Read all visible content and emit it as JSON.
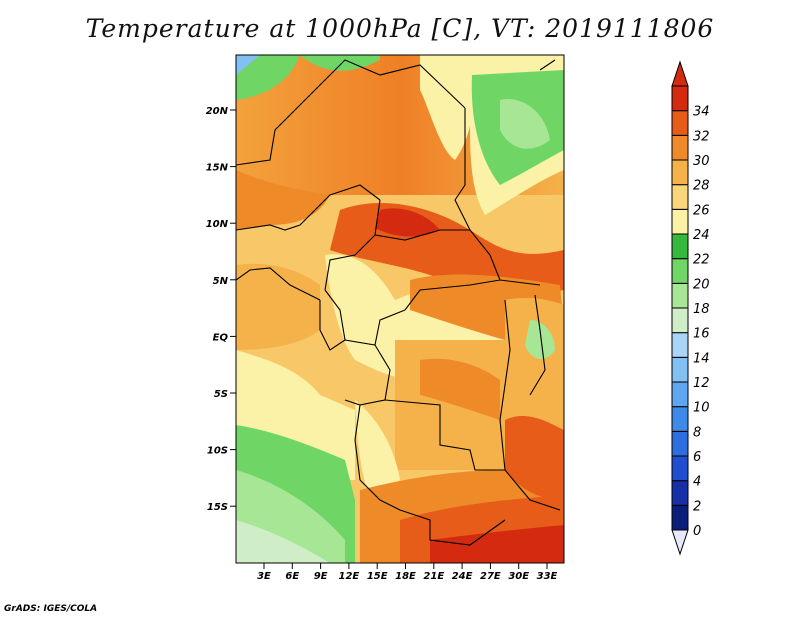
{
  "title": "Temperature at 1000hPa [C], VT: 2019111806",
  "footer": "GrADS: IGES/COLA",
  "lat_labels": [
    "20N",
    "15N",
    "10N",
    "5N",
    "EQ",
    "5S",
    "10S",
    "15S"
  ],
  "lon_labels": [
    "3E",
    "6E",
    "9E",
    "12E",
    "15E",
    "18E",
    "21E",
    "24E",
    "27E",
    "30E",
    "33E"
  ],
  "colorbar": {
    "labels": [
      "0",
      "2",
      "4",
      "6",
      "8",
      "10",
      "12",
      "14",
      "16",
      "18",
      "20",
      "22",
      "24",
      "26",
      "28",
      "30",
      "32",
      "34"
    ],
    "colors": [
      "#0b1e7a",
      "#1730a8",
      "#1f4fd0",
      "#2e6fe0",
      "#3f8ae8",
      "#5ea6ef",
      "#82c0f4",
      "#a9d6f7",
      "#cfeec8",
      "#a6e694",
      "#6fd666",
      "#36b73d",
      "#fbf2a8",
      "#f9d67a",
      "#f5b24a",
      "#ef8a28",
      "#e65c18",
      "#d42a10"
    ]
  }
}
